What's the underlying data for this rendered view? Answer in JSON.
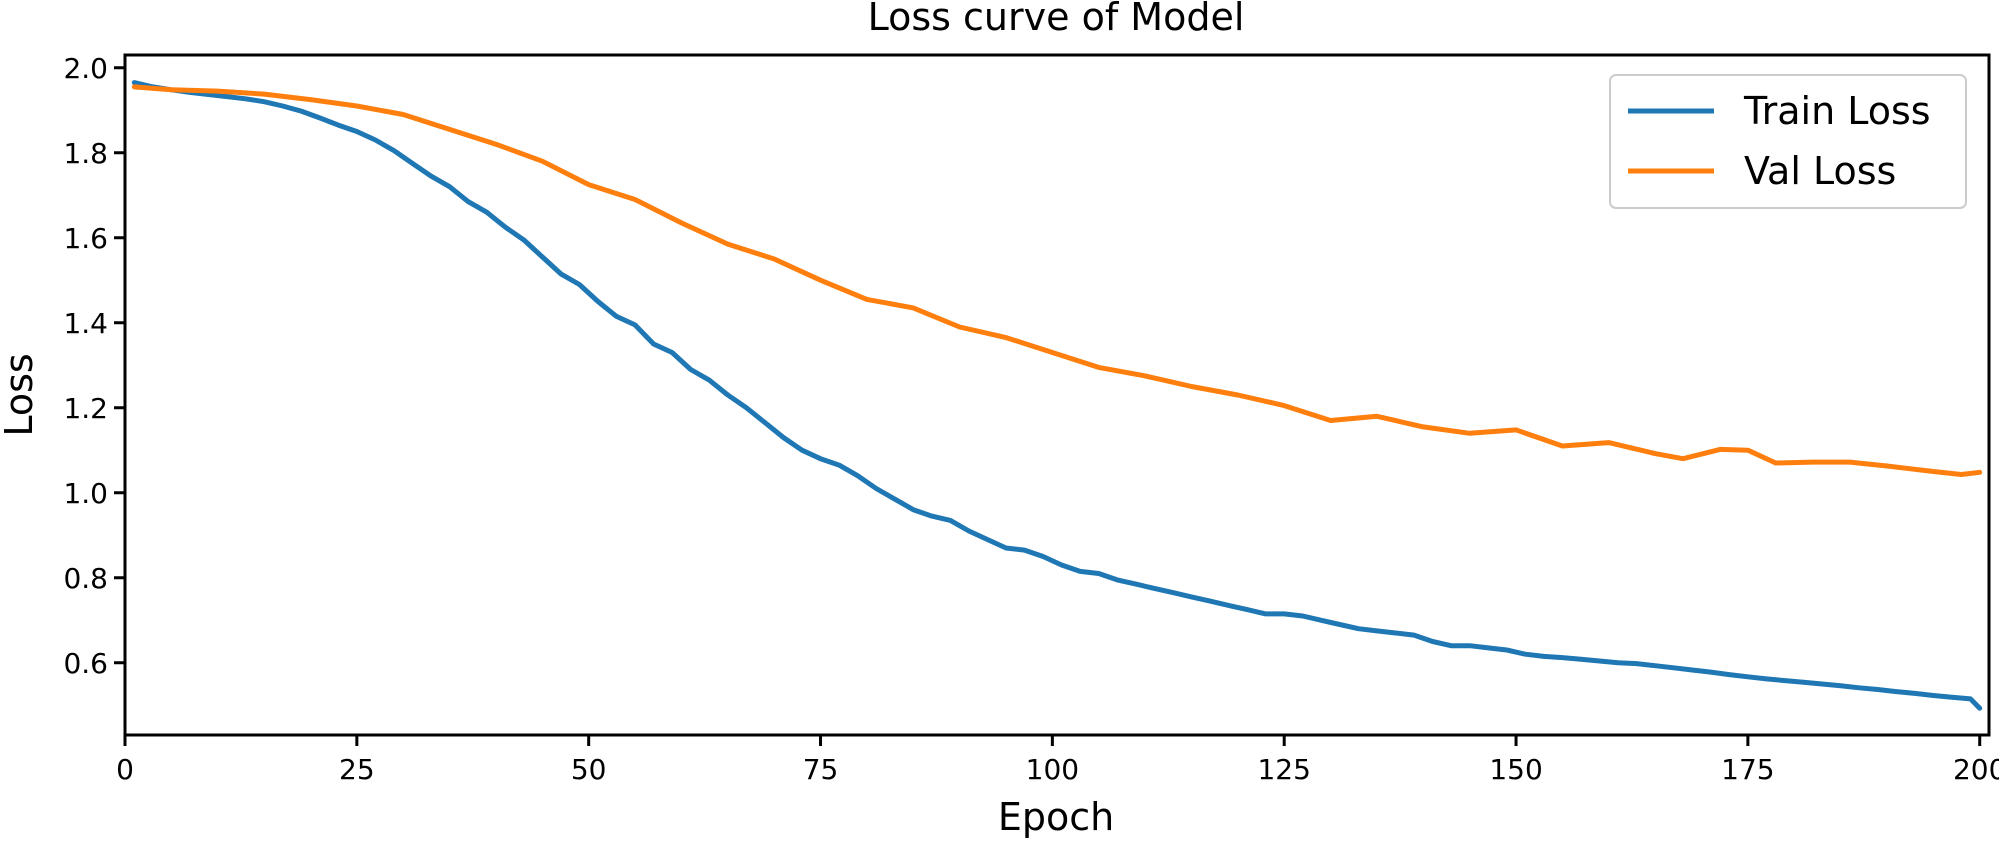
{
  "chart_data": {
    "type": "line",
    "title": "Loss curve of Model",
    "xlabel": "Epoch",
    "ylabel": "Loss",
    "xlim": [
      0,
      201
    ],
    "ylim": [
      0.43,
      2.03
    ],
    "xticks": [
      0,
      25,
      50,
      75,
      100,
      125,
      150,
      175,
      200
    ],
    "yticks": [
      0.6,
      0.8,
      1.0,
      1.2,
      1.4,
      1.6,
      1.8,
      2.0
    ],
    "grid": false,
    "legend_position": "top-right",
    "series": [
      {
        "name": "Train Loss",
        "color": "#1f77b4",
        "x": [
          1,
          3,
          5,
          7,
          9,
          11,
          13,
          15,
          17,
          19,
          21,
          23,
          25,
          27,
          29,
          31,
          33,
          35,
          37,
          39,
          41,
          43,
          45,
          47,
          49,
          51,
          53,
          55,
          57,
          59,
          61,
          63,
          65,
          67,
          69,
          71,
          73,
          75,
          77,
          79,
          81,
          83,
          85,
          87,
          89,
          91,
          93,
          95,
          97,
          99,
          101,
          103,
          105,
          107,
          109,
          111,
          113,
          115,
          117,
          119,
          121,
          123,
          125,
          127,
          129,
          131,
          133,
          135,
          137,
          139,
          141,
          143,
          145,
          147,
          149,
          151,
          153,
          155,
          157,
          159,
          161,
          163,
          165,
          167,
          169,
          171,
          173,
          175,
          177,
          179,
          181,
          183,
          185,
          187,
          189,
          191,
          193,
          195,
          197,
          199,
          200
        ],
        "y": [
          1.965,
          1.955,
          1.948,
          1.942,
          1.937,
          1.932,
          1.927,
          1.92,
          1.91,
          1.898,
          1.882,
          1.865,
          1.85,
          1.83,
          1.805,
          1.775,
          1.745,
          1.72,
          1.685,
          1.66,
          1.625,
          1.595,
          1.555,
          1.515,
          1.49,
          1.45,
          1.415,
          1.395,
          1.35,
          1.33,
          1.29,
          1.265,
          1.23,
          1.2,
          1.165,
          1.13,
          1.1,
          1.08,
          1.065,
          1.04,
          1.01,
          0.985,
          0.96,
          0.945,
          0.935,
          0.91,
          0.89,
          0.87,
          0.865,
          0.85,
          0.83,
          0.815,
          0.81,
          0.795,
          0.785,
          0.775,
          0.765,
          0.755,
          0.745,
          0.735,
          0.725,
          0.715,
          0.715,
          0.71,
          0.7,
          0.69,
          0.68,
          0.675,
          0.67,
          0.665,
          0.65,
          0.64,
          0.64,
          0.635,
          0.63,
          0.62,
          0.615,
          0.612,
          0.608,
          0.604,
          0.6,
          0.598,
          0.593,
          0.588,
          0.583,
          0.578,
          0.572,
          0.567,
          0.562,
          0.558,
          0.554,
          0.55,
          0.546,
          0.541,
          0.537,
          0.532,
          0.528,
          0.523,
          0.519,
          0.515,
          0.493
        ]
      },
      {
        "name": "Val Loss",
        "color": "#ff7f0e",
        "x": [
          1,
          5,
          10,
          15,
          20,
          25,
          30,
          35,
          40,
          45,
          50,
          55,
          60,
          65,
          70,
          75,
          80,
          85,
          90,
          95,
          100,
          105,
          110,
          115,
          120,
          125,
          130,
          135,
          140,
          145,
          150,
          155,
          160,
          165,
          168,
          172,
          175,
          178,
          182,
          186,
          190,
          195,
          198,
          200
        ],
        "y": [
          1.955,
          1.948,
          1.945,
          1.938,
          1.925,
          1.91,
          1.89,
          1.855,
          1.82,
          1.78,
          1.725,
          1.69,
          1.635,
          1.585,
          1.55,
          1.5,
          1.455,
          1.435,
          1.39,
          1.365,
          1.33,
          1.295,
          1.275,
          1.25,
          1.23,
          1.205,
          1.17,
          1.18,
          1.155,
          1.14,
          1.148,
          1.11,
          1.118,
          1.092,
          1.08,
          1.102,
          1.1,
          1.07,
          1.072,
          1.072,
          1.063,
          1.05,
          1.043,
          1.048
        ]
      }
    ]
  }
}
